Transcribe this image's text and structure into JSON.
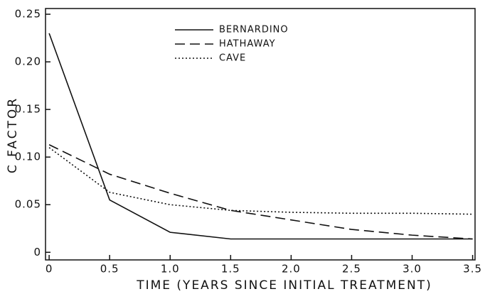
{
  "chart_data": {
    "type": "line",
    "xlabel": "TIME (YEARS SINCE INITIAL TREATMENT)",
    "ylabel": "C FACTOR",
    "x": [
      0,
      0.5,
      1,
      1.5,
      2,
      2.5,
      3,
      3.5
    ],
    "series": [
      {
        "name": "BERNARDINO",
        "color": "#111111",
        "dash": "solid",
        "values": [
          0.23,
          0.055,
          0.021,
          0.014,
          0.014,
          0.014,
          0.014,
          0.014
        ]
      },
      {
        "name": "HATHAWAY",
        "color": "#111111",
        "dash": "dashed",
        "values": [
          0.113,
          0.082,
          0.062,
          0.044,
          0.034,
          0.024,
          0.018,
          0.014
        ]
      },
      {
        "name": "CAVE",
        "color": "#111111",
        "dash": "dotted",
        "values": [
          0.11,
          0.063,
          0.05,
          0.044,
          0.042,
          0.041,
          0.041,
          0.04
        ]
      }
    ],
    "xlim": [
      -0.03,
      3.52
    ],
    "ylim": [
      -0.008,
      0.256
    ],
    "xticks": [
      0,
      0.5,
      {
        "value": 1,
        "label": "1.0"
      },
      1.5,
      {
        "value": 2,
        "label": "2.0"
      },
      2.5,
      {
        "value": 3,
        "label": "3.0"
      },
      3.5
    ],
    "yticks": [
      0,
      0.05,
      {
        "value": 0.1,
        "label": "0.10"
      },
      0.15,
      {
        "value": 0.2,
        "label": "0.20"
      },
      0.25
    ],
    "grid": false,
    "legend": "upper-center"
  }
}
